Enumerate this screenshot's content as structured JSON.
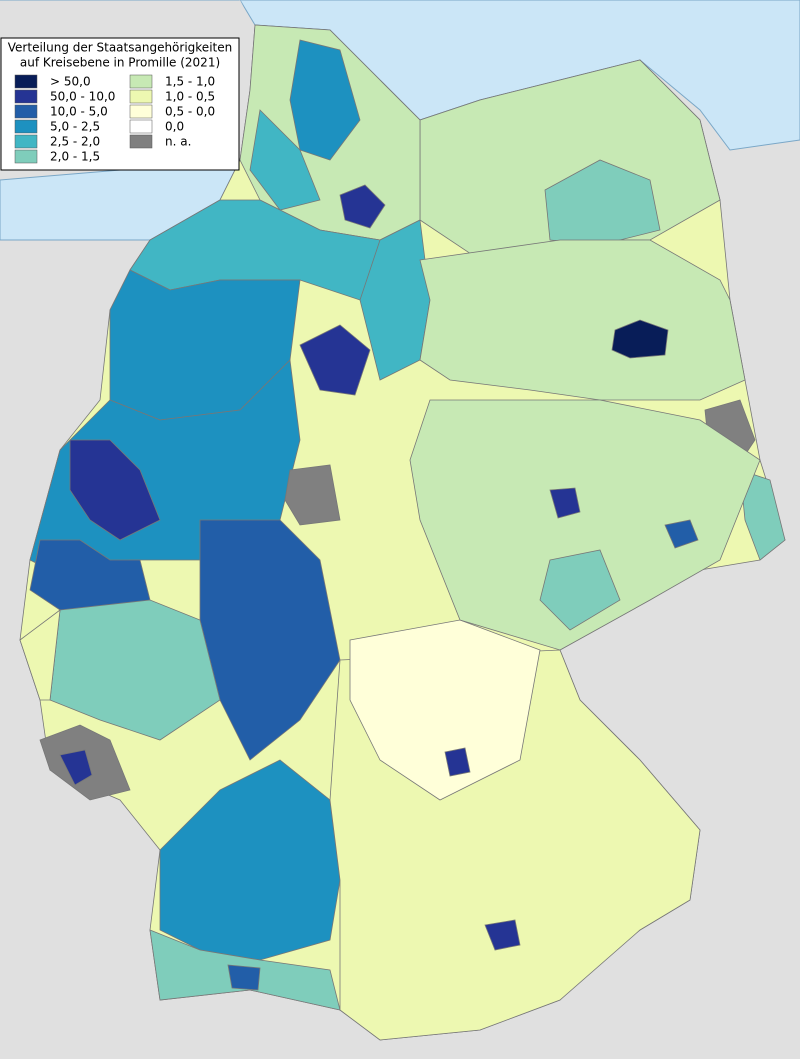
{
  "legend": {
    "title": [
      "Verteilung der Staatsangehörigkeiten",
      "auf Kreisebene in Promille (2021)"
    ],
    "items": [
      {
        "label": "> 50,0",
        "color": "#081d58"
      },
      {
        "label": "50,0 - 10,0",
        "color": "#253494"
      },
      {
        "label": "10,0 - 5,0",
        "color": "#225ea8"
      },
      {
        "label": "5,0 - 2,5",
        "color": "#1d91c0"
      },
      {
        "label": "2,5 - 2,0",
        "color": "#41b6c4"
      },
      {
        "label": "2,0 - 1,5",
        "color": "#7fcdbb"
      },
      {
        "label": "1,5 - 1,0",
        "color": "#c7e9b4"
      },
      {
        "label": "1,0 - 0,5",
        "color": "#edf8b1"
      },
      {
        "label": "0,5 - 0,0",
        "color": "#ffffd9"
      },
      {
        "label": "0,0",
        "color": "#ffffff"
      },
      {
        "label": "n. a.",
        "color": "#808080"
      }
    ]
  }
}
